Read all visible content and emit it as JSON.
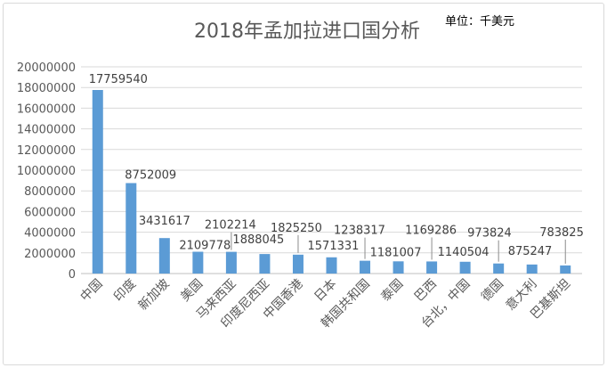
{
  "chart_data": {
    "type": "bar",
    "title": "2018年孟加拉进口国分析",
    "unit_note": "单位：千美元",
    "xlabel": "",
    "ylabel": "",
    "ylim": [
      0,
      20000000
    ],
    "ytick_step": 2000000,
    "y_ticks": [
      "0",
      "2000000",
      "4000000",
      "6000000",
      "8000000",
      "10000000",
      "12000000",
      "14000000",
      "16000000",
      "18000000",
      "20000000"
    ],
    "grid": true,
    "bar_color": "#5b9bd5",
    "categories": [
      "中国",
      "印度",
      "新加坡",
      "美国",
      "马来西亚",
      "印度尼西亚",
      "中国香港",
      "日本",
      "韩国共和国",
      "泰国",
      "巴西",
      "台北，中国",
      "德国",
      "意大利",
      "巴基斯坦"
    ],
    "values": [
      17759540,
      8752009,
      3431617,
      2109778,
      2102214,
      1888045,
      1825250,
      1571331,
      1238317,
      1181007,
      1169286,
      1140504,
      973824,
      875247,
      783825
    ],
    "data_labels": [
      "17759540",
      "8752009",
      "3431617",
      "2109778",
      "2102214",
      "1888045",
      "1825250",
      "1571331",
      "1238317",
      "1181007",
      "1169286",
      "1140504",
      "973824",
      "875247",
      "783825"
    ]
  }
}
